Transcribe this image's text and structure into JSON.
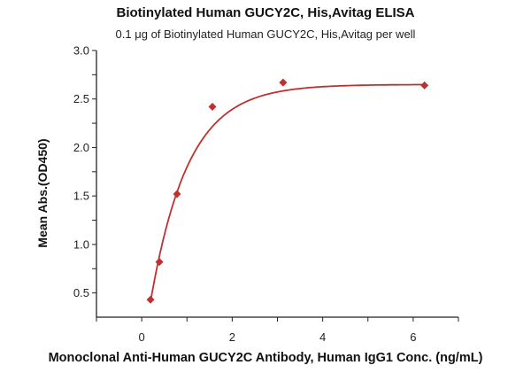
{
  "chart_data": {
    "type": "scatter",
    "title": "Biotinylated Human GUCY2C, His,Avitag ELISA",
    "subtitle": "0.1 μg of Biotinylated Human GUCY2C, His,Avitag per well",
    "xlabel": "Monoclonal Anti-Human GUCY2C Antibody, Human IgG1 Conc. (ng/mL)",
    "ylabel": "Mean Abs.(OD450)",
    "xlim": [
      -1,
      7
    ],
    "ylim": [
      0.25,
      3.0
    ],
    "xticks": [
      "0",
      "2",
      "4",
      "6"
    ],
    "yticks": [
      "0.5",
      "1.0",
      "1.5",
      "2.0",
      "2.5",
      "3.0"
    ],
    "grid": false,
    "marker": "diamond",
    "fit_curve": true,
    "color": "#c0302e",
    "x": [
      0.195,
      0.39,
      0.78,
      1.5625,
      3.125,
      6.25
    ],
    "y": [
      0.43,
      0.82,
      1.52,
      2.42,
      2.67,
      2.64
    ]
  }
}
